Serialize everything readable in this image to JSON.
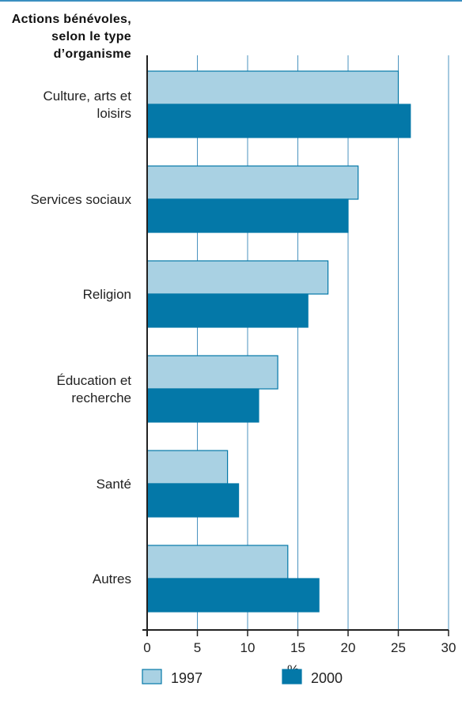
{
  "chart_data": {
    "type": "bar",
    "orientation": "horizontal",
    "title_lines": [
      "Actions bénévoles,",
      "selon le type",
      "d’organisme"
    ],
    "categories": [
      [
        "Culture, arts et",
        "loisirs"
      ],
      [
        "Services sociaux"
      ],
      [
        "Religion"
      ],
      [
        "Éducation et",
        "recherche"
      ],
      [
        "Santé"
      ],
      [
        "Autres"
      ]
    ],
    "series": [
      {
        "name": "1997",
        "color": "#a9d1e3",
        "values": [
          25,
          21,
          18,
          13,
          8,
          14
        ]
      },
      {
        "name": "2000",
        "color": "#0478a8",
        "values": [
          26.2,
          20,
          16,
          11.1,
          9.1,
          17.1
        ]
      }
    ],
    "xlabel": "%",
    "xlim": [
      0,
      30
    ],
    "xticks": [
      "0",
      "5",
      "10",
      "15",
      "20",
      "25",
      "30"
    ],
    "grid": true,
    "legend_position": "bottom"
  }
}
